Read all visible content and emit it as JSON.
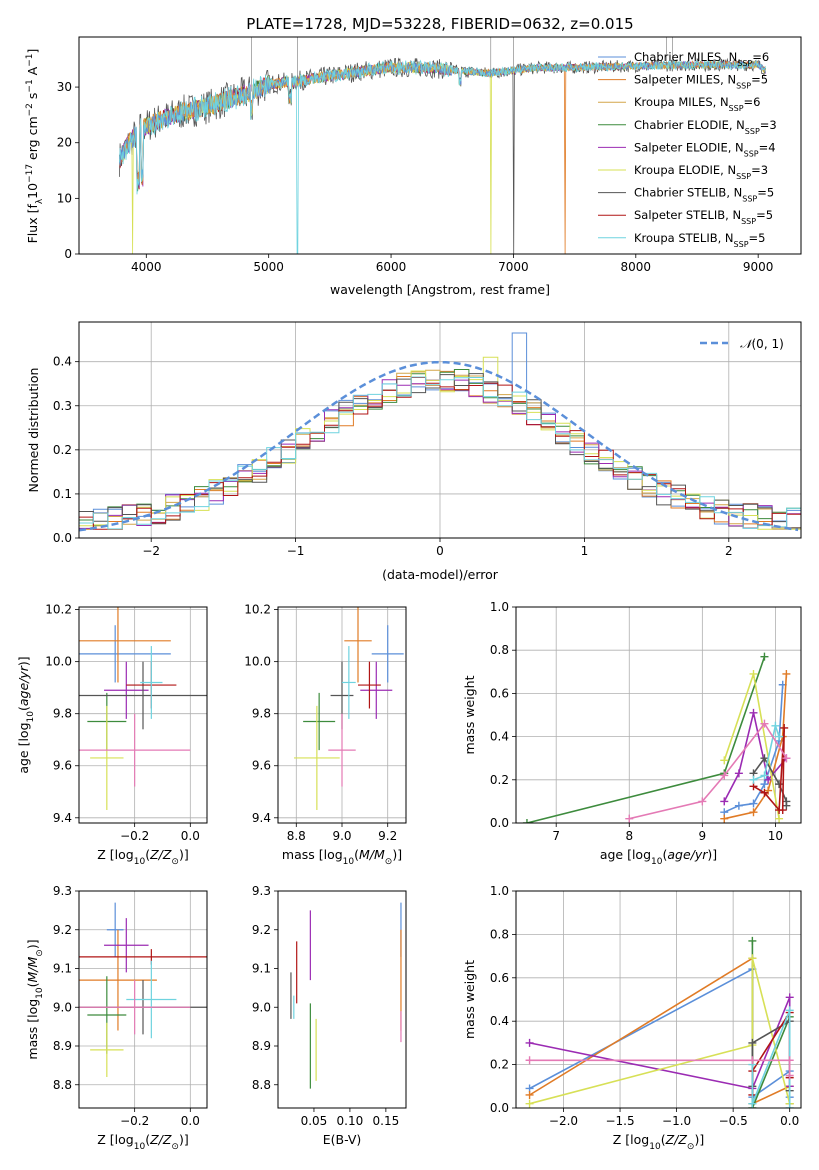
{
  "figure_title": "PLATE=1728, MJD=53228, FIBERID=0632, z=0.015",
  "colors": {
    "Chabrier MILES": "#5b8fd9",
    "Salpeter MILES": "#e07b26",
    "Kroupa MILES": "#d4a64a",
    "Chabrier ELODIE": "#3d8b3d",
    "Salpeter ELODIE": "#9b2bb3",
    "Kroupa ELODIE": "#d7e056",
    "Chabrier STELIB": "#555555",
    "Salpeter STELIB": "#b01515",
    "Kroupa STELIB": "#6fd3df",
    "pink": "#e47ab5",
    "normal_curve": "#5b8fd9",
    "grid": "#b0b0b0"
  },
  "chart_data": [
    {
      "id": "spectrum",
      "type": "line",
      "title": "PLATE=1728, MJD=53228, FIBERID=0632, z=0.015",
      "xlabel": "wavelength [Angstrom, rest frame]",
      "ylabel": "Flux [f_λ 10^-17 erg cm^-2 s^-1 A^-1]",
      "xlim": [
        3450,
        9350
      ],
      "ylim": [
        0,
        39
      ],
      "xticks": [
        4000,
        5000,
        6000,
        7000,
        8000,
        9000
      ],
      "yticks": [
        0,
        10,
        20,
        30
      ],
      "grid": false,
      "legend_position": "top-right",
      "legend": [
        "Chabrier MILES, N_SSP=6",
        "Salpeter MILES, N_SSP=5",
        "Kroupa MILES, N_SSP=6",
        "Chabrier ELODIE, N_SSP=3",
        "Salpeter ELODIE, N_SSP=4",
        "Kroupa ELODIE, N_SSP=3",
        "Chabrier STELIB, N_SSP=5",
        "Salpeter STELIB, N_SSP=5",
        "Kroupa STELIB, N_SSP=5"
      ],
      "data_x_range": [
        3780,
        9060
      ],
      "continuum": [
        [
          3780,
          17
        ],
        [
          3860,
          20
        ],
        [
          3950,
          22.5
        ],
        [
          4100,
          24
        ],
        [
          4300,
          25.5
        ],
        [
          4500,
          26.5
        ],
        [
          4700,
          28
        ],
        [
          4900,
          29.5
        ],
        [
          5000,
          30.5
        ],
        [
          5200,
          31
        ],
        [
          5500,
          32
        ],
        [
          5800,
          33
        ],
        [
          6000,
          33.5
        ],
        [
          6300,
          33.5
        ],
        [
          6500,
          33
        ],
        [
          6800,
          32.5
        ],
        [
          7000,
          33
        ],
        [
          7200,
          33.5
        ],
        [
          7500,
          33.5
        ],
        [
          8000,
          33.8
        ],
        [
          8500,
          34
        ],
        [
          9000,
          34
        ],
        [
          9060,
          33
        ]
      ],
      "dips": [
        {
          "at": 3890,
          "to": 0,
          "series": "Kroupa ELODIE"
        },
        {
          "at": 5235,
          "to": 0,
          "series": "Kroupa STELIB"
        },
        {
          "at": 6815,
          "to": 0,
          "series": "Kroupa ELODIE"
        },
        {
          "at": 7420,
          "to": 0,
          "series": "Salpeter MILES"
        }
      ]
    },
    {
      "id": "residual-histogram",
      "type": "bar",
      "xlabel": "(data-model)/error",
      "ylabel": "Normed distribution",
      "xlim": [
        -2.5,
        2.5
      ],
      "ylim": [
        0,
        0.49
      ],
      "xticks": [
        -2,
        -1,
        0,
        1,
        2
      ],
      "yticks": [
        0.0,
        0.1,
        0.2,
        0.3,
        0.4
      ],
      "grid": true,
      "legend_position": "top-right",
      "legend": [
        "N(0,1)"
      ],
      "bin_width": 0.1,
      "series_count": 9
    },
    {
      "id": "age-vs-Z",
      "type": "scatter",
      "xlabel": "Z [log10(Z/Z_sun)]",
      "ylabel": "age [log10(age/yr)]",
      "xlim": [
        -0.4,
        0.06
      ],
      "ylim": [
        9.38,
        10.21
      ],
      "xticks": [
        -0.2,
        0.0
      ],
      "yticks": [
        9.4,
        9.6,
        9.8,
        10.0,
        10.2
      ],
      "grid": true,
      "points": [
        {
          "series": "Chabrier MILES",
          "x": -0.27,
          "y": 10.03,
          "xerr": 0.2,
          "yerr": 0.11
        },
        {
          "series": "Salpeter MILES",
          "x": -0.26,
          "y": 10.08,
          "xerr": 0.19,
          "yerr": 0.16
        },
        {
          "series": "Chabrier ELODIE",
          "x": -0.3,
          "y": 9.77,
          "xerr": 0.07,
          "yerr": 0.11
        },
        {
          "series": "Salpeter ELODIE",
          "x": -0.23,
          "y": 9.89,
          "xerr": 0.08,
          "yerr": 0.11
        },
        {
          "series": "Kroupa ELODIE",
          "x": -0.3,
          "y": 9.63,
          "xerr": 0.06,
          "yerr": 0.2
        },
        {
          "series": "Chabrier STELIB",
          "x": -0.17,
          "y": 9.87,
          "xerr": 0.23,
          "yerr": 0.13
        },
        {
          "series": "Salpeter STELIB",
          "x": -0.14,
          "y": 9.91,
          "xerr": 0.09,
          "yerr": 0.09
        },
        {
          "series": "Kroupa STELIB",
          "x": -0.14,
          "y": 9.92,
          "xerr": 0.04,
          "yerr": 0.14
        },
        {
          "series": "pink",
          "x": -0.2,
          "y": 9.66,
          "xerr": 0.2,
          "yerr": 0.14
        }
      ]
    },
    {
      "id": "age-vs-mass",
      "type": "scatter",
      "xlabel": "mass [log10(M/M_sun)]",
      "ylabel": "",
      "xlim": [
        8.72,
        9.28
      ],
      "ylim": [
        9.38,
        10.21
      ],
      "xticks": [
        8.8,
        9.0,
        9.2
      ],
      "yticks": [
        9.4,
        9.6,
        9.8,
        10.0,
        10.2
      ],
      "grid": true,
      "points": [
        {
          "series": "Chabrier MILES",
          "x": 9.2,
          "y": 10.03,
          "xerr": 0.07,
          "yerr": 0.11
        },
        {
          "series": "Salpeter MILES",
          "x": 9.07,
          "y": 10.08,
          "xerr": 0.06,
          "yerr": 0.16
        },
        {
          "series": "Chabrier ELODIE",
          "x": 8.9,
          "y": 9.77,
          "xerr": 0.07,
          "yerr": 0.11
        },
        {
          "series": "Salpeter ELODIE",
          "x": 9.15,
          "y": 9.89,
          "xerr": 0.07,
          "yerr": 0.11
        },
        {
          "series": "Kroupa ELODIE",
          "x": 8.89,
          "y": 9.63,
          "xerr": 0.1,
          "yerr": 0.2
        },
        {
          "series": "Chabrier STELIB",
          "x": 9.0,
          "y": 9.87,
          "xerr": 0.05,
          "yerr": 0.13
        },
        {
          "series": "Salpeter STELIB",
          "x": 9.12,
          "y": 9.91,
          "xerr": 0.05,
          "yerr": 0.09
        },
        {
          "series": "Kroupa STELIB",
          "x": 9.03,
          "y": 9.92,
          "xerr": 0.03,
          "yerr": 0.14
        },
        {
          "series": "pink",
          "x": 9.0,
          "y": 9.66,
          "xerr": 0.06,
          "yerr": 0.14
        }
      ]
    },
    {
      "id": "massweight-vs-age",
      "type": "line",
      "xlabel": "age [log10(age/yr)]",
      "ylabel": "mass weight",
      "xlim": [
        6.45,
        10.35
      ],
      "ylim": [
        0,
        1
      ],
      "xticks": [
        7,
        8,
        9,
        10
      ],
      "yticks": [
        0.0,
        0.2,
        0.4,
        0.6,
        0.8,
        1.0
      ],
      "grid": true,
      "series": [
        {
          "name": "Chabrier MILES",
          "x": [
            9.3,
            9.5,
            9.7,
            9.85,
            10.05,
            10.1
          ],
          "y": [
            0.05,
            0.08,
            0.09,
            0.18,
            0.38,
            0.64
          ]
        },
        {
          "name": "Salpeter MILES",
          "x": [
            9.3,
            9.7,
            9.9,
            10.1,
            10.15
          ],
          "y": [
            0.02,
            0.05,
            0.15,
            0.4,
            0.69
          ]
        },
        {
          "name": "Chabrier ELODIE",
          "x": [
            6.6,
            9.3,
            9.85
          ],
          "y": [
            0.0,
            0.23,
            0.77
          ]
        },
        {
          "name": "Salpeter ELODIE",
          "x": [
            9.3,
            9.5,
            9.7,
            9.9,
            10.15
          ],
          "y": [
            0.1,
            0.23,
            0.51,
            0.2,
            0.3
          ]
        },
        {
          "name": "Kroupa ELODIE",
          "x": [
            9.3,
            9.7,
            10.05
          ],
          "y": [
            0.29,
            0.69,
            0.02
          ]
        },
        {
          "name": "Chabrier STELIB",
          "x": [
            9.7,
            9.85,
            10.05,
            10.15,
            10.15
          ],
          "y": [
            0.23,
            0.3,
            0.18,
            0.1,
            0.08
          ]
        },
        {
          "name": "Salpeter STELIB",
          "x": [
            9.7,
            9.85,
            10.05,
            10.12,
            10.1
          ],
          "y": [
            0.17,
            0.14,
            0.06,
            0.44,
            0.06
          ]
        },
        {
          "name": "Kroupa STELIB",
          "x": [
            9.7,
            9.85,
            10.0,
            10.05
          ],
          "y": [
            0.2,
            0.22,
            0.45,
            0.4
          ]
        },
        {
          "name": "pink",
          "x": [
            8.0,
            9.0,
            9.3,
            9.85,
            10.15
          ],
          "y": [
            0.02,
            0.1,
            0.22,
            0.46,
            0.3
          ]
        }
      ]
    },
    {
      "id": "mass-vs-Z",
      "type": "scatter",
      "xlabel": "Z [log10(Z/Z_sun)]",
      "ylabel": "mass [log10(M/M_sun)]",
      "xlim": [
        -0.4,
        0.06
      ],
      "ylim": [
        8.74,
        9.3
      ],
      "xticks": [
        -0.2,
        0.0
      ],
      "yticks": [
        8.8,
        8.9,
        9.0,
        9.1,
        9.2,
        9.3
      ],
      "grid": true,
      "points": [
        {
          "series": "Chabrier MILES",
          "x": -0.27,
          "y": 9.2,
          "xerr": 0.03,
          "yerr": 0.07
        },
        {
          "series": "Salpeter MILES",
          "x": -0.26,
          "y": 9.07,
          "xerr": 0.14,
          "yerr": 0.13
        },
        {
          "series": "Chabrier ELODIE",
          "x": -0.3,
          "y": 8.98,
          "xerr": 0.07,
          "yerr": 0.1
        },
        {
          "series": "Salpeter ELODIE",
          "x": -0.23,
          "y": 9.16,
          "xerr": 0.08,
          "yerr": 0.07
        },
        {
          "series": "Kroupa ELODIE",
          "x": -0.3,
          "y": 8.89,
          "xerr": 0.06,
          "yerr": 0.07
        },
        {
          "series": "Chabrier STELIB",
          "x": -0.17,
          "y": 9.0,
          "xerr": 0.23,
          "yerr": 0.07
        },
        {
          "series": "Salpeter STELIB",
          "x": -0.14,
          "y": 9.13,
          "xerr": 0.28,
          "yerr": 0.02
        },
        {
          "series": "Kroupa STELIB",
          "x": -0.14,
          "y": 9.02,
          "xerr": 0.09,
          "yerr": 0.1
        },
        {
          "series": "pink",
          "x": -0.2,
          "y": 9.0,
          "xerr": 0.2,
          "yerr": 0.07
        }
      ]
    },
    {
      "id": "mass-vs-ebv",
      "type": "scatter",
      "xlabel": "E(B-V)",
      "ylabel": "",
      "xlim": [
        0.0,
        0.178
      ],
      "ylim": [
        8.74,
        9.3
      ],
      "xticks": [
        0.05,
        0.1,
        0.15
      ],
      "yticks": [
        8.8,
        8.9,
        9.0,
        9.1,
        9.2,
        9.3
      ],
      "grid": false,
      "points": [
        {
          "series": "Chabrier MILES",
          "x": 0.171,
          "y": 9.2,
          "yerr": 0.07
        },
        {
          "series": "Salpeter MILES",
          "x": 0.171,
          "y": 9.07,
          "yerr": 0.13
        },
        {
          "series": "Chabrier ELODIE",
          "x": 0.045,
          "y": 8.9,
          "yerr": 0.11
        },
        {
          "series": "Salpeter ELODIE",
          "x": 0.045,
          "y": 9.16,
          "yerr": 0.09
        },
        {
          "series": "Kroupa ELODIE",
          "x": 0.053,
          "y": 8.89,
          "yerr": 0.08
        },
        {
          "series": "Chabrier STELIB",
          "x": 0.018,
          "y": 9.03,
          "yerr": 0.06
        },
        {
          "series": "Salpeter STELIB",
          "x": 0.026,
          "y": 9.09,
          "yerr": 0.08
        },
        {
          "series": "Kroupa STELIB",
          "x": 0.022,
          "y": 9.0,
          "yerr": 0.03
        },
        {
          "series": "pink",
          "x": 0.171,
          "y": 8.95,
          "yerr": 0.04
        }
      ]
    },
    {
      "id": "massweight-vs-Z",
      "type": "line",
      "xlabel": "Z [log10(Z/Z_sun)]",
      "ylabel": "mass weight",
      "xlim": [
        -2.42,
        0.1
      ],
      "ylim": [
        0,
        1
      ],
      "xticks": [
        -2.0,
        -1.5,
        -1.0,
        -0.5,
        0.0
      ],
      "yticks": [
        0.0,
        0.2,
        0.4,
        0.6,
        0.8,
        1.0
      ],
      "grid": true,
      "series": [
        {
          "name": "Chabrier MILES",
          "x": [
            -2.3,
            -0.33,
            -0.33,
            0.0,
            0.0
          ],
          "y": [
            0.09,
            0.64,
            0.05,
            0.17,
            0.05
          ]
        },
        {
          "name": "Salpeter MILES",
          "x": [
            -2.3,
            -0.33,
            -0.33,
            0.0,
            0.0
          ],
          "y": [
            0.06,
            0.69,
            0.02,
            0.1,
            0.02
          ]
        },
        {
          "name": "Chabrier ELODIE",
          "x": [
            -0.33,
            -0.33,
            0.0
          ],
          "y": [
            0.77,
            0.0,
            0.42
          ]
        },
        {
          "name": "Salpeter ELODIE",
          "x": [
            -2.3,
            -0.33,
            0.0,
            0.0
          ],
          "y": [
            0.3,
            0.09,
            0.51,
            0.1
          ]
        },
        {
          "name": "Kroupa ELODIE",
          "x": [
            -2.3,
            -0.33,
            -0.33,
            0.0
          ],
          "y": [
            0.02,
            0.29,
            0.69,
            0.02
          ]
        },
        {
          "name": "Chabrier STELIB",
          "x": [
            -0.33,
            -0.33,
            0.0,
            0.0
          ],
          "y": [
            0.1,
            0.3,
            0.4,
            0.08
          ]
        },
        {
          "name": "Salpeter STELIB",
          "x": [
            -0.33,
            -0.33,
            0.0,
            0.0
          ],
          "y": [
            0.06,
            0.17,
            0.44,
            0.14
          ]
        },
        {
          "name": "Kroupa STELIB",
          "x": [
            -0.33,
            -0.33,
            0.0,
            0.0
          ],
          "y": [
            0.2,
            0.02,
            0.45,
            0.0
          ]
        },
        {
          "name": "pink",
          "x": [
            -2.3,
            -0.33,
            0.0,
            0.0
          ],
          "y": [
            0.22,
            0.22,
            0.22,
            0.15
          ]
        }
      ]
    }
  ]
}
